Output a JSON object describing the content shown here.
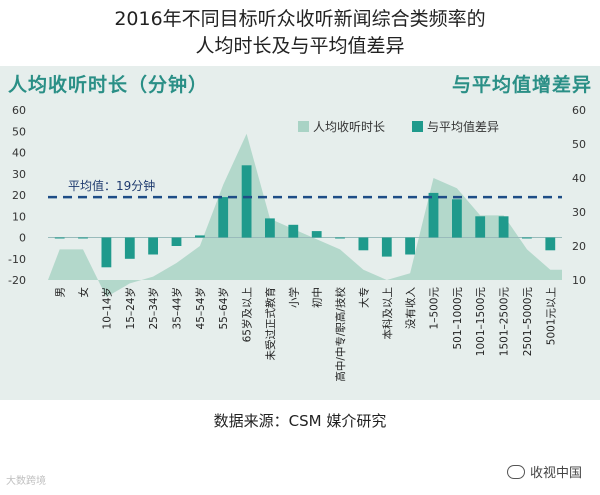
{
  "title_line1": "2016年不同目标听众收听新闻综合类频率的",
  "title_line2": "人均时长及与平均值差异",
  "source": "数据来源：CSM 媒介研究",
  "watermark_left": "大数跨境",
  "watermark_right": "收视中国",
  "colors": {
    "area": "#a9d3c5",
    "bar": "#1f9a8c",
    "heading": "#2a8f86",
    "avg_line": "#1e4d86",
    "panel": "#e6eeec"
  },
  "chart_data": {
    "type": "bar+area",
    "left_axis_title": "人均收听时长（分钟）",
    "right_axis_title": "与平均值增差异",
    "legend": [
      "人均收听时长",
      "与平均值差异"
    ],
    "average_label": "平均值：19分钟",
    "average_value": 19,
    "left_ylim": [
      -20,
      60
    ],
    "left_ticks": [
      -20,
      -10,
      0,
      10,
      20,
      30,
      40,
      50,
      60
    ],
    "right_ylim": [
      10,
      60
    ],
    "right_ticks": [
      10,
      20,
      30,
      40,
      50,
      60
    ],
    "categories": [
      "男",
      "女",
      "10–14岁",
      "15–24岁",
      "25–34岁",
      "35–44岁",
      "45–54岁",
      "55–64岁",
      "65岁及以上",
      "未受过正式教育",
      "小学",
      "初中",
      "高中/中专/职高/技校",
      "大专",
      "本科及以上",
      "没有收入",
      "1–500元",
      "501–1000元",
      "1001–1500元",
      "1501–2500元",
      "2501–5000元",
      "5001元以上"
    ],
    "series": [
      {
        "name": "人均收听时长",
        "axis": "right",
        "values": [
          19,
          19,
          5,
          9,
          11,
          15,
          20,
          38,
          53,
          28,
          25,
          22,
          19,
          13,
          10,
          12,
          40,
          37,
          29,
          29,
          19,
          13
        ]
      },
      {
        "name": "与平均值差异",
        "axis": "left",
        "values": [
          0,
          0,
          -14,
          -10,
          -8,
          -4,
          1,
          19,
          34,
          9,
          6,
          3,
          0,
          -6,
          -9,
          -8,
          21,
          18,
          10,
          10,
          0,
          -6
        ]
      }
    ]
  }
}
